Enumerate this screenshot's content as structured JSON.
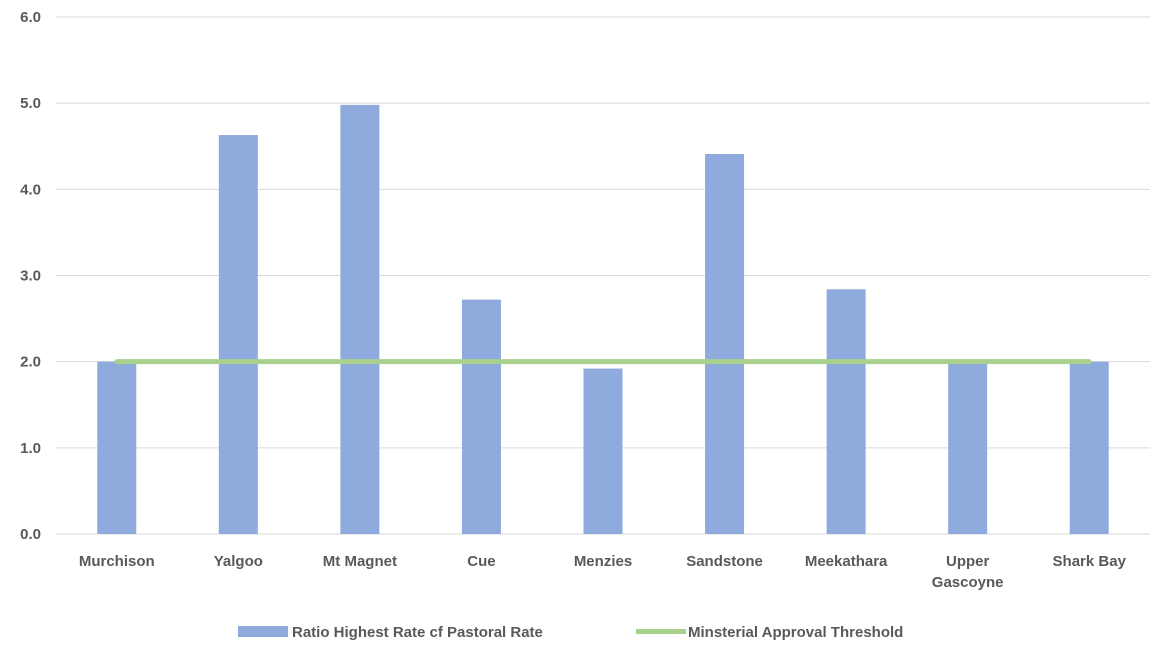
{
  "chart_data": {
    "type": "bar",
    "title": "",
    "xlabel": "",
    "ylabel": "",
    "ylim": [
      0,
      6
    ],
    "yticks": [
      "0.0",
      "1.0",
      "2.0",
      "3.0",
      "4.0",
      "5.0",
      "6.0"
    ],
    "grid": true,
    "legend_position": "bottom",
    "categories": [
      [
        "Murchison"
      ],
      [
        "Yalgoo"
      ],
      [
        "Mt Magnet"
      ],
      [
        "Cue"
      ],
      [
        "Menzies"
      ],
      [
        "Sandstone"
      ],
      [
        "Meekathara"
      ],
      [
        "Upper",
        "Gascoyne"
      ],
      [
        "Shark Bay"
      ]
    ],
    "series": [
      {
        "name": "Ratio Highest Rate cf Pastoral Rate",
        "kind": "bar",
        "color": "#8faadc",
        "values": [
          2.0,
          4.63,
          4.98,
          2.72,
          1.92,
          4.41,
          2.84,
          2.0,
          2.0
        ]
      },
      {
        "name": "Minsterial Approval Threshold",
        "kind": "line",
        "color": "#a9d18e",
        "values": [
          2.0,
          2.0,
          2.0,
          2.0,
          2.0,
          2.0,
          2.0,
          2.0,
          2.0
        ]
      }
    ]
  }
}
